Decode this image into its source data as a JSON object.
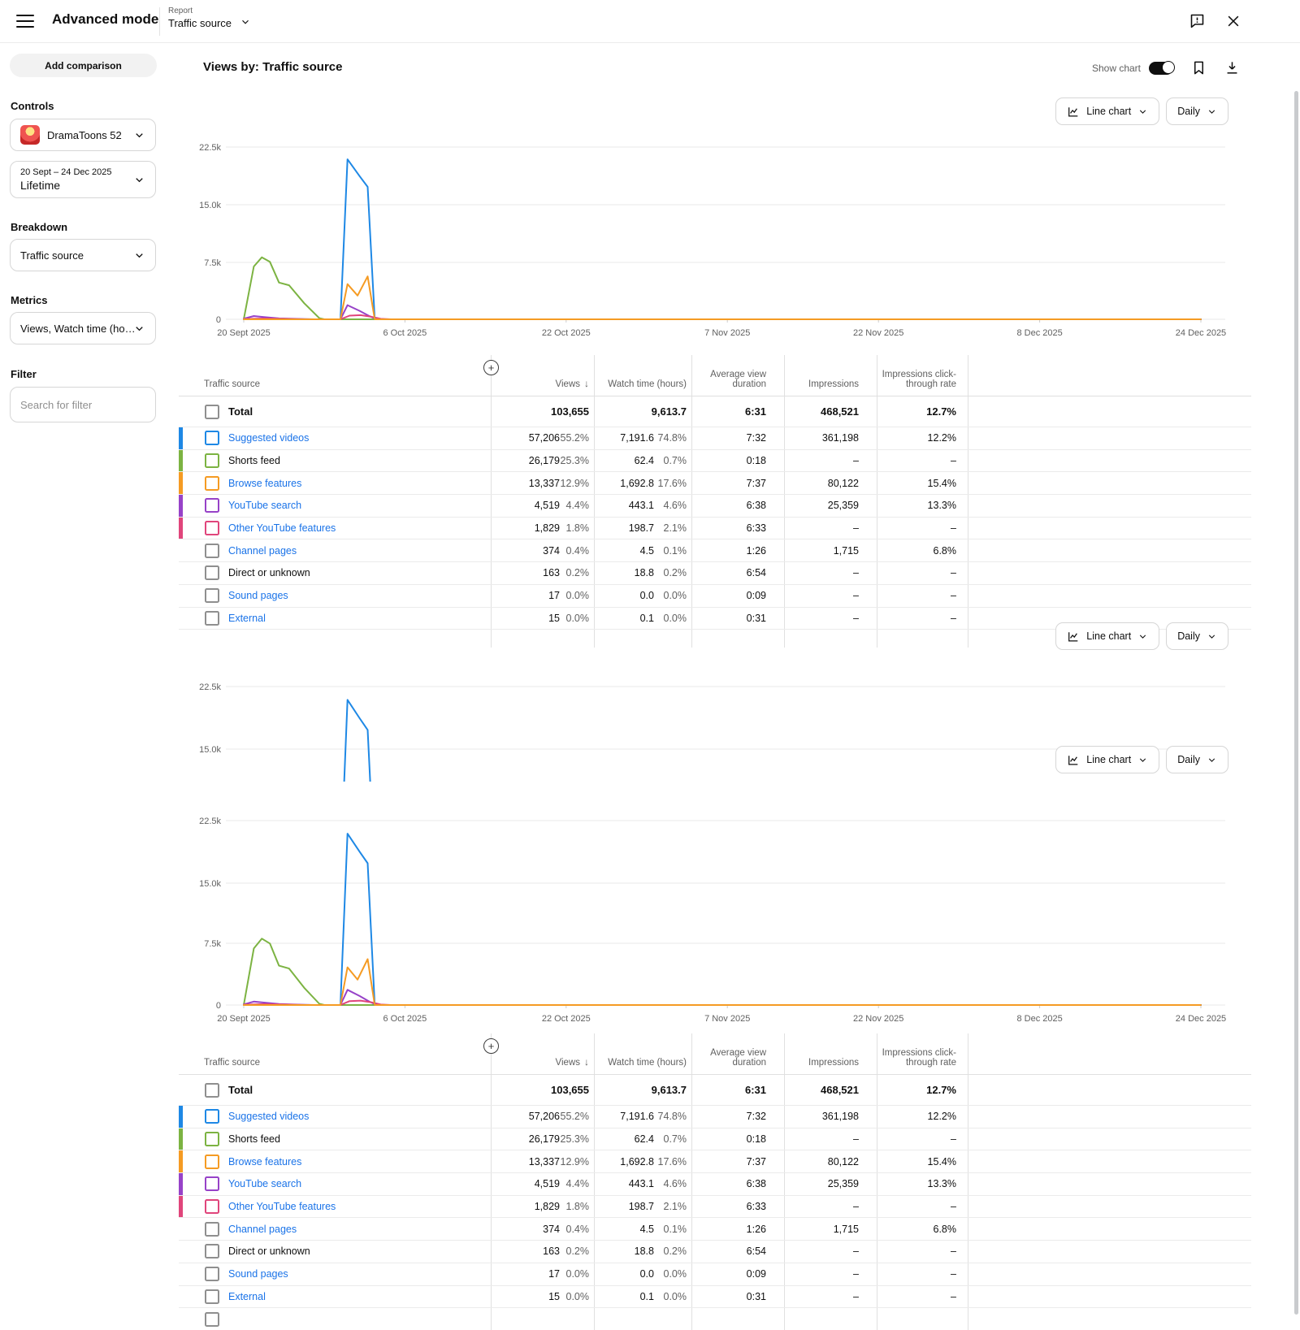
{
  "topbar": {
    "title": "Advanced mode",
    "report_label": "Report",
    "report_value": "Traffic source"
  },
  "sidebar": {
    "add_comparison_label": "Add comparison",
    "controls_label": "Controls",
    "channel_name": "DramaToons 52",
    "date_range": "20 Sept – 24 Dec 2025",
    "date_preset": "Lifetime",
    "breakdown_label": "Breakdown",
    "breakdown_value": "Traffic source",
    "metrics_label": "Metrics",
    "metrics_value": "Views, Watch time (ho…",
    "filter_label": "Filter",
    "filter_placeholder": "Search for filter"
  },
  "main": {
    "title": "Views by: Traffic source",
    "show_chart_label": "Show chart",
    "chart_type_label": "Line chart",
    "interval_label": "Daily"
  },
  "chart_data": {
    "type": "line",
    "title": "Views by: Traffic source",
    "ylabel": "Views",
    "ylim": [
      0,
      24000
    ],
    "y_ticks": [
      "22.5k",
      "15.0k",
      "7.5k",
      "0"
    ],
    "x_ticks": [
      "20 Sept 2025",
      "6 Oct 2025",
      "22 Oct 2025",
      "7 Nov 2025",
      "22 Nov 2025",
      "8 Dec 2025",
      "24 Dec 2025"
    ],
    "x_tick_days": [
      0,
      16,
      32,
      48,
      63,
      79,
      95
    ],
    "x_range_days": [
      0,
      95
    ],
    "grid": true,
    "legend_position": "none",
    "series": [
      {
        "name": "Shorts feed",
        "color": "#7cb342",
        "points": [
          [
            0,
            0
          ],
          [
            1,
            6900
          ],
          [
            1.8,
            8100
          ],
          [
            2.6,
            7500
          ],
          [
            3.5,
            4800
          ],
          [
            4.5,
            4450
          ],
          [
            6,
            2100
          ],
          [
            7.5,
            150
          ],
          [
            8,
            0
          ],
          [
            95,
            0
          ]
        ]
      },
      {
        "name": "YouTube search",
        "color": "#9742c8",
        "points": [
          [
            0,
            80
          ],
          [
            1,
            420
          ],
          [
            2,
            300
          ],
          [
            3.5,
            120
          ],
          [
            5,
            60
          ],
          [
            7,
            0
          ],
          [
            9.6,
            0
          ],
          [
            10.3,
            1850
          ],
          [
            11.5,
            1100
          ],
          [
            12.5,
            400
          ],
          [
            13.2,
            0
          ],
          [
            95,
            0
          ]
        ]
      },
      {
        "name": "Other YouTube features",
        "color": "#e0457b",
        "points": [
          [
            0,
            40
          ],
          [
            2,
            110
          ],
          [
            4,
            60
          ],
          [
            6,
            0
          ],
          [
            9.6,
            0
          ],
          [
            10.5,
            480
          ],
          [
            11.6,
            540
          ],
          [
            12.6,
            350
          ],
          [
            13.6,
            60
          ],
          [
            14.6,
            0
          ],
          [
            95,
            0
          ]
        ]
      },
      {
        "name": "Suggested videos",
        "color": "#1e88e5",
        "points": [
          [
            9.6,
            0
          ],
          [
            10.3,
            20900
          ],
          [
            11.5,
            18700
          ],
          [
            12.3,
            17300
          ],
          [
            13,
            0
          ],
          [
            95,
            0
          ]
        ]
      },
      {
        "name": "Browse features",
        "color": "#f59b23",
        "points": [
          [
            0,
            0
          ],
          [
            9.6,
            0
          ],
          [
            10.3,
            4600
          ],
          [
            11.3,
            3100
          ],
          [
            12.3,
            5600
          ],
          [
            13,
            0
          ],
          [
            95,
            0
          ]
        ]
      }
    ]
  },
  "table": {
    "columns": [
      "Traffic source",
      "Views",
      "Watch time (hours)",
      "Average view duration",
      "Impressions",
      "Impressions click-through rate"
    ],
    "sort_arrow": "↓",
    "total": {
      "label": "Total",
      "views": "103,655",
      "watch": "9,613.7",
      "avd": "6:31",
      "impressions": "468,521",
      "ctr": "12.7%"
    },
    "rows": [
      {
        "label": "Suggested videos",
        "link": true,
        "color": "#1e88e5",
        "views": "57,206",
        "views_pct": "55.2%",
        "watch": "7,191.6",
        "watch_pct": "74.8%",
        "avd": "7:32",
        "impressions": "361,198",
        "ctr": "12.2%"
      },
      {
        "label": "Shorts feed",
        "link": false,
        "color": "#7cb342",
        "views": "26,179",
        "views_pct": "25.3%",
        "watch": "62.4",
        "watch_pct": "0.7%",
        "avd": "0:18",
        "impressions": "–",
        "ctr": "–"
      },
      {
        "label": "Browse features",
        "link": true,
        "color": "#f59b23",
        "views": "13,337",
        "views_pct": "12.9%",
        "watch": "1,692.8",
        "watch_pct": "17.6%",
        "avd": "7:37",
        "impressions": "80,122",
        "ctr": "15.4%"
      },
      {
        "label": "YouTube search",
        "link": true,
        "color": "#9742c8",
        "views": "4,519",
        "views_pct": "4.4%",
        "watch": "443.1",
        "watch_pct": "4.6%",
        "avd": "6:38",
        "impressions": "25,359",
        "ctr": "13.3%"
      },
      {
        "label": "Other YouTube features",
        "link": true,
        "color": "#e0457b",
        "views": "1,829",
        "views_pct": "1.8%",
        "watch": "198.7",
        "watch_pct": "2.1%",
        "avd": "6:33",
        "impressions": "–",
        "ctr": "–"
      },
      {
        "label": "Channel pages",
        "link": true,
        "color": null,
        "views": "374",
        "views_pct": "0.4%",
        "watch": "4.5",
        "watch_pct": "0.1%",
        "avd": "1:26",
        "impressions": "1,715",
        "ctr": "6.8%"
      },
      {
        "label": "Direct or unknown",
        "link": false,
        "color": null,
        "views": "163",
        "views_pct": "0.2%",
        "watch": "18.8",
        "watch_pct": "0.2%",
        "avd": "6:54",
        "impressions": "–",
        "ctr": "–"
      },
      {
        "label": "Sound pages",
        "link": true,
        "color": null,
        "views": "17",
        "views_pct": "0.0%",
        "watch": "0.0",
        "watch_pct": "0.0%",
        "avd": "0:09",
        "impressions": "–",
        "ctr": "–"
      },
      {
        "label": "External",
        "link": true,
        "color": null,
        "views": "15",
        "views_pct": "0.0%",
        "watch": "0.1",
        "watch_pct": "0.0%",
        "avd": "0:31",
        "impressions": "–",
        "ctr": "–"
      }
    ]
  }
}
